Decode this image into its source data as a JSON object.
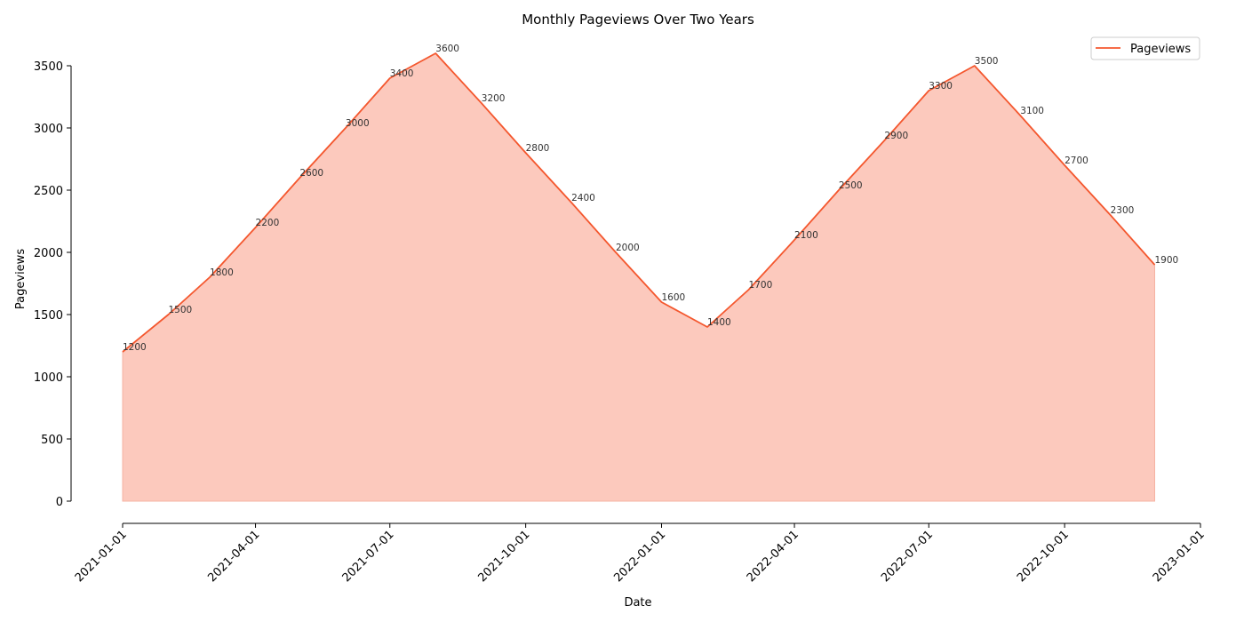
{
  "chart_data": {
    "type": "area",
    "title": "Monthly Pageviews Over Two Years",
    "xlabel": "Date",
    "ylabel": "Pageviews",
    "x": [
      "2021-01-01",
      "2021-02-01",
      "2021-03-01",
      "2021-04-01",
      "2021-05-01",
      "2021-06-01",
      "2021-07-01",
      "2021-08-01",
      "2021-09-01",
      "2021-10-01",
      "2021-11-01",
      "2021-12-01",
      "2022-01-01",
      "2022-02-01",
      "2022-03-01",
      "2022-04-01",
      "2022-05-01",
      "2022-06-01",
      "2022-07-01",
      "2022-08-01",
      "2022-09-01",
      "2022-10-01",
      "2022-11-01",
      "2022-12-01"
    ],
    "series": [
      {
        "name": "Pageviews",
        "values": [
          1200,
          1500,
          1800,
          2200,
          2600,
          3000,
          3400,
          3600,
          3200,
          2800,
          2400,
          2000,
          1600,
          1400,
          1700,
          2100,
          2500,
          2900,
          3300,
          3500,
          3100,
          2700,
          2300,
          1900
        ]
      }
    ],
    "xlim": [
      "2021-01-01",
      "2023-01-01"
    ],
    "ylim": [
      0,
      3500
    ],
    "x_ticks": [
      "2021-01-01",
      "2021-04-01",
      "2021-07-01",
      "2021-10-01",
      "2022-01-01",
      "2022-04-01",
      "2022-07-01",
      "2022-10-01",
      "2023-01-01"
    ],
    "y_ticks": [
      0,
      500,
      1000,
      1500,
      2000,
      2500,
      3000,
      3500
    ],
    "grid": false,
    "legend": "top-right",
    "colors": {
      "line": "#f4572e",
      "fill": "#fcc9bd",
      "fill_edge": "#f6b4a4"
    }
  }
}
